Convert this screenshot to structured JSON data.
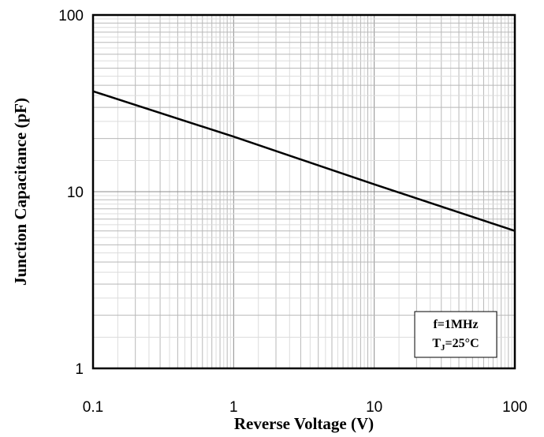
{
  "chart_data": {
    "type": "line",
    "xlabel": "Reverse Voltage (V)",
    "ylabel": "Junction Capacitance (pF)",
    "xscale": "log",
    "yscale": "log",
    "xlim": [
      0.1,
      100
    ],
    "ylim": [
      1,
      100
    ],
    "xticks": [
      "0.1",
      "1",
      "10",
      "100"
    ],
    "yticks": [
      "1",
      "10",
      "100"
    ],
    "grid": true,
    "series": [
      {
        "color": "#000000",
        "x": [
          0.1,
          1,
          10,
          100
        ],
        "y": [
          37,
          20.5,
          11,
          6
        ]
      }
    ],
    "annotation": {
      "line1": "f=1MHz",
      "line2_main": "T",
      "line2_sub": "J",
      "line2_rest": "=25°C"
    }
  }
}
